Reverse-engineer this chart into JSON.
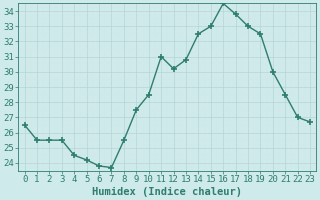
{
  "x": [
    0,
    1,
    2,
    3,
    4,
    5,
    6,
    7,
    8,
    9,
    10,
    11,
    12,
    13,
    14,
    15,
    16,
    17,
    18,
    19,
    20,
    21,
    22,
    23
  ],
  "y": [
    26.5,
    25.5,
    25.5,
    25.5,
    24.5,
    24.2,
    23.8,
    23.7,
    25.5,
    27.5,
    28.5,
    31.0,
    30.2,
    30.8,
    32.5,
    33.0,
    34.5,
    33.8,
    33.0,
    32.5,
    30.0,
    28.5,
    27.0,
    26.7
  ],
  "line_color": "#2e7d6e",
  "marker": "+",
  "marker_size": 4,
  "bg_color": "#ceeaea",
  "grid_major_color": "#b8d4d4",
  "grid_minor_color": "#d4e8e8",
  "xlabel": "Humidex (Indice chaleur)",
  "ylim": [
    23.5,
    34.5
  ],
  "xlim": [
    -0.5,
    23.5
  ],
  "yticks": [
    24,
    25,
    26,
    27,
    28,
    29,
    30,
    31,
    32,
    33,
    34
  ],
  "xticks": [
    0,
    1,
    2,
    3,
    4,
    5,
    6,
    7,
    8,
    9,
    10,
    11,
    12,
    13,
    14,
    15,
    16,
    17,
    18,
    19,
    20,
    21,
    22,
    23
  ],
  "xlabel_fontsize": 7.5,
  "tick_fontsize": 6.5,
  "line_width": 1.0,
  "marker_edge_width": 1.2
}
